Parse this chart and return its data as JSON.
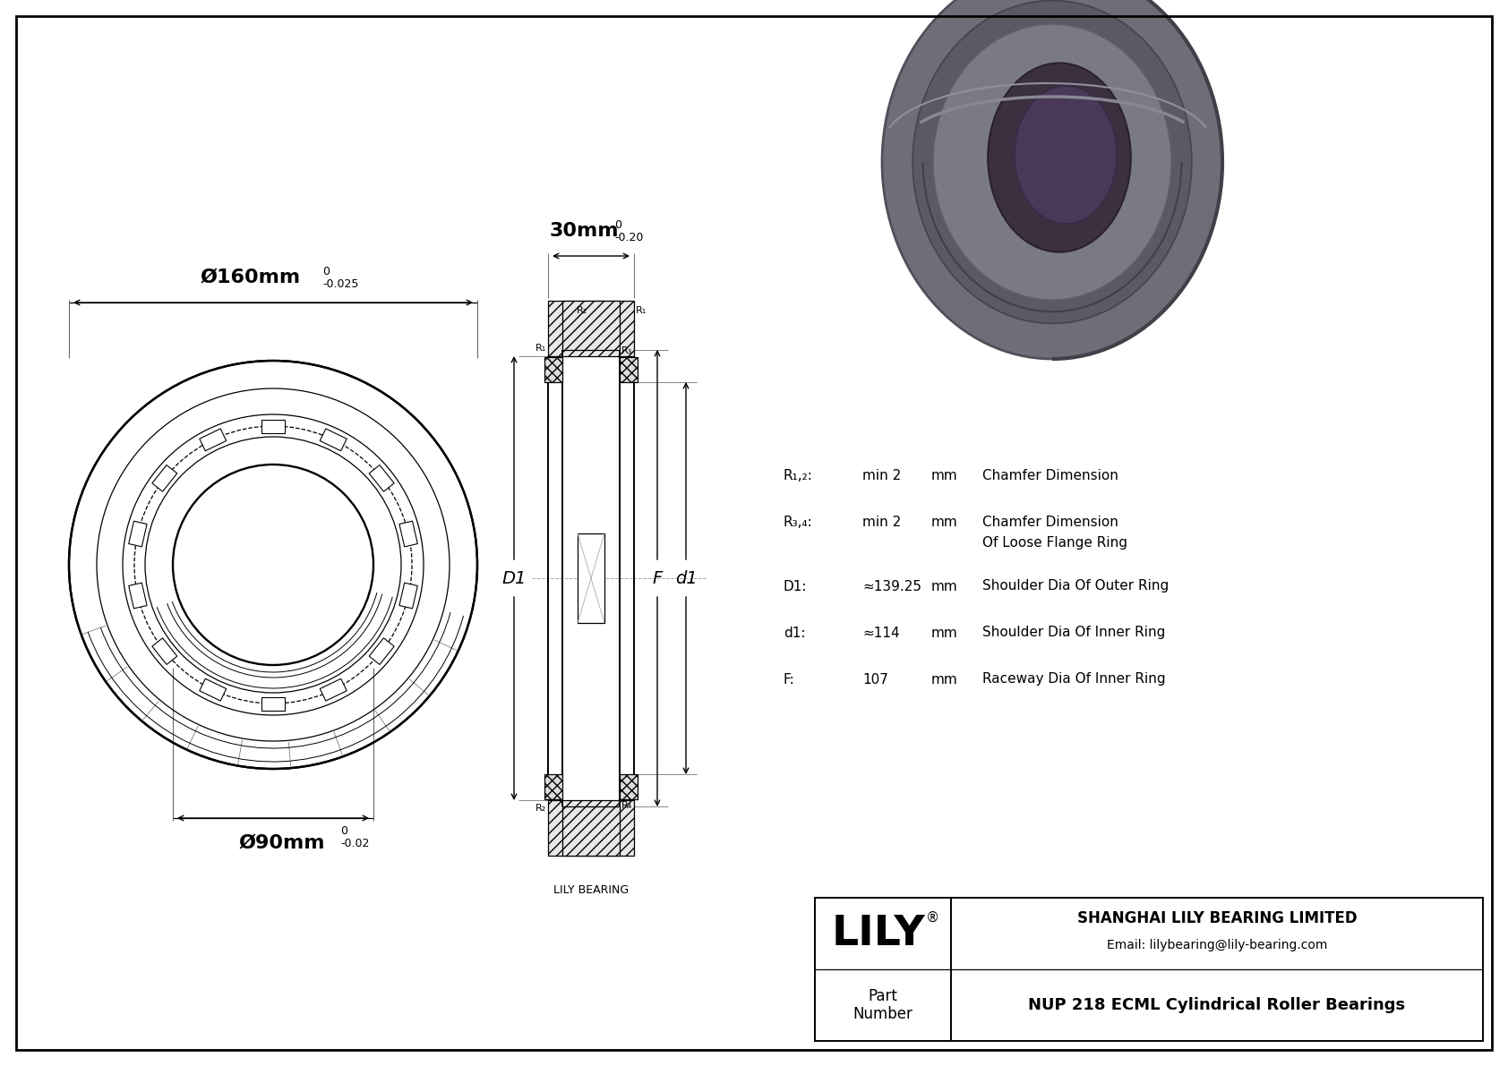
{
  "bg_color": "#ffffff",
  "line_color": "#000000",
  "bearing_3d_color": "#6a6a72",
  "bearing_3d_dark": "#3a3a42",
  "bearing_3d_inner": "#4a4050",
  "title_company": "SHANGHAI LILY BEARING LIMITED",
  "title_email": "Email: lilybearing@lily-bearing.com",
  "title_logo": "LILY",
  "title_part_label": "Part\nNumber",
  "title_part_name": "NUP 218 ECML Cylindrical Roller Bearings",
  "dim_outer_main": "Ø160mm",
  "dim_outer_tol_top": "0",
  "dim_outer_tol_bot": "-0.025",
  "dim_inner_main": "Ø90mm",
  "dim_inner_tol_top": "0",
  "dim_inner_tol_bot": "-0.02",
  "dim_width_main": "30mm",
  "dim_width_tol_top": "0",
  "dim_width_tol_bot": "-0.20",
  "spec_rows": [
    {
      "label": "R₁,₂:",
      "value": "min 2",
      "unit": "mm",
      "desc": "Chamfer Dimension",
      "desc2": null
    },
    {
      "label": "R₃,₄:",
      "value": "min 2",
      "unit": "mm",
      "desc": "Chamfer Dimension",
      "desc2": "Of Loose Flange Ring"
    },
    {
      "label": "D1:",
      "value": "≈139.25",
      "unit": "mm",
      "desc": "Shoulder Dia Of Outer Ring",
      "desc2": null
    },
    {
      "label": "d1:",
      "value": "≈114",
      "unit": "mm",
      "desc": "Shoulder Dia Of Inner Ring",
      "desc2": null
    },
    {
      "label": "F:",
      "value": "107",
      "unit": "mm",
      "desc": "Raceway Dia Of Inner Ring",
      "desc2": null
    }
  ],
  "lily_bearing_label": "LILY BEARING",
  "zero_sup": "0"
}
